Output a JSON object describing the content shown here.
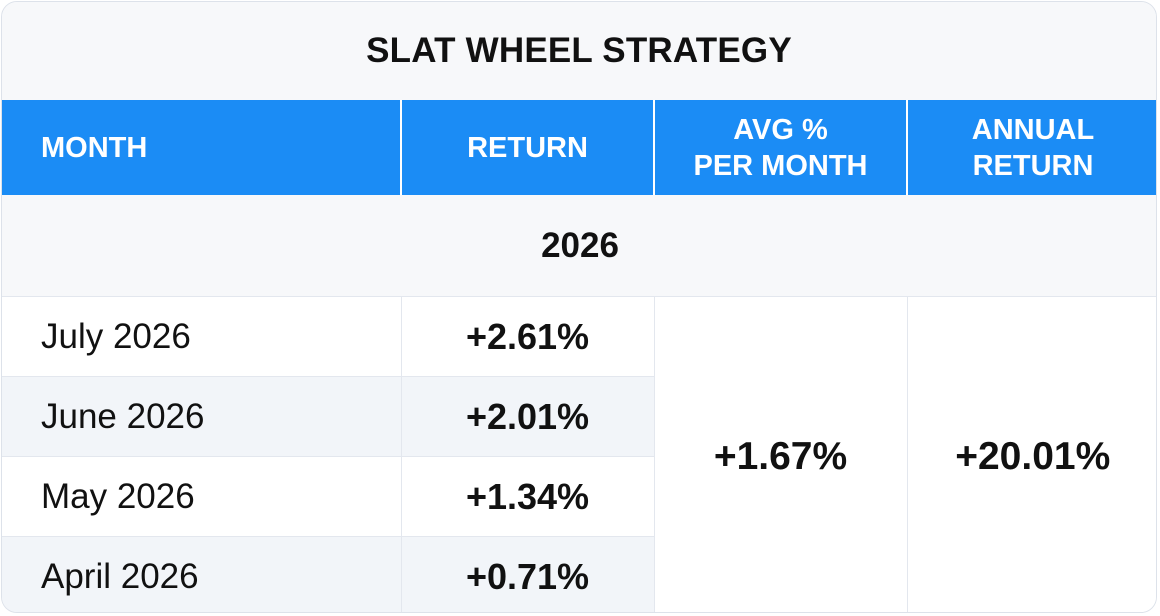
{
  "title": "SLAT WHEEL STRATEGY",
  "columns": {
    "month": "MONTH",
    "return": "RETURN",
    "avg_line1": "AVG %",
    "avg_line2": "PER MONTH",
    "annual_line1": "ANNUAL",
    "annual_line2": "RETURN"
  },
  "year": "2026",
  "rows": [
    {
      "month": "July 2026",
      "return": "+2.61%"
    },
    {
      "month": "June 2026",
      "return": "+2.01%"
    },
    {
      "month": "May 2026",
      "return": "+1.34%"
    },
    {
      "month": "April 2026",
      "return": "+0.71%"
    }
  ],
  "avg_per_month": "+1.67%",
  "annual_return": "+20.01%",
  "colors": {
    "header_bg": "#1b8cf5",
    "header_text": "#ffffff",
    "shade_row": "#f2f5f9"
  }
}
